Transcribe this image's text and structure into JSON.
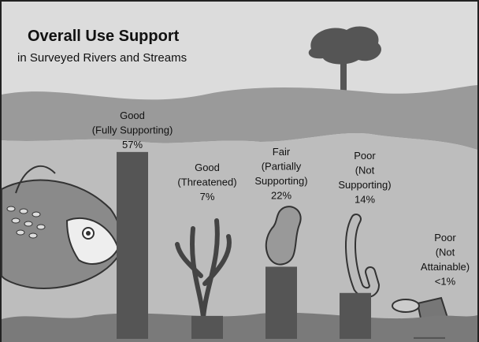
{
  "chart_data": {
    "type": "bar",
    "title": "Overall Use Support",
    "subtitle": "in Surveyed Rivers and Streams",
    "categories": [
      [
        "Good",
        "(Fully Supporting)"
      ],
      [
        "Good",
        "(Threatened)"
      ],
      [
        "Fair",
        "(Partially",
        "Supporting)"
      ],
      [
        "Poor",
        "(Not",
        "Supporting)"
      ],
      [
        "Poor",
        "(Not",
        "Attainable)"
      ]
    ],
    "values": [
      57,
      7,
      22,
      14,
      0.5
    ],
    "value_labels": [
      "57%",
      "7%",
      "22%",
      "14%",
      "<1%"
    ],
    "color": "#555555"
  }
}
